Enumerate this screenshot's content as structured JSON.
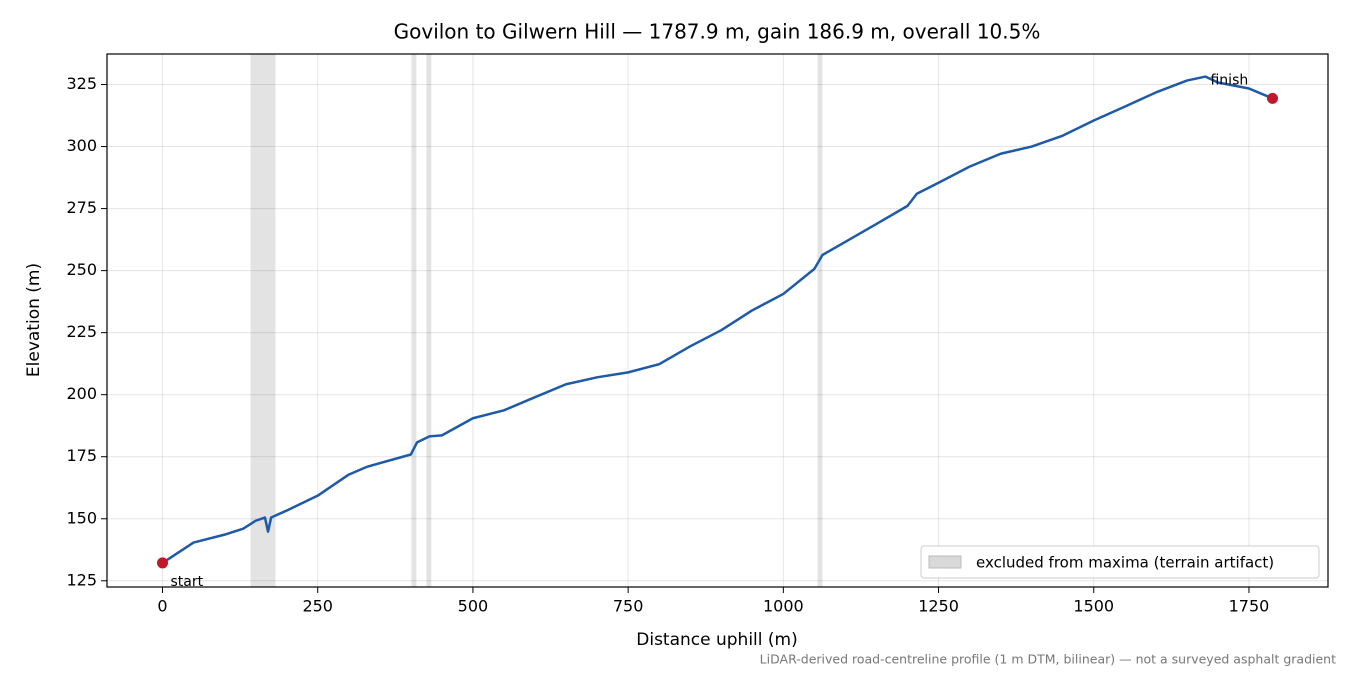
{
  "chart_data": {
    "type": "line",
    "title": "Govilon to Gilwern Hill — 1787.9 m, gain 186.9 m, overall 10.5%",
    "x_label": "Distance uphill (m)",
    "y_label": "Elevation (m)",
    "footnote": "LiDAR-derived road-centreline profile (1 m DTM, bilinear) — not a surveyed asphalt gradient",
    "x": [
      0,
      50,
      100,
      130,
      150,
      165,
      170,
      175,
      200,
      250,
      300,
      330,
      400,
      410,
      430,
      450,
      500,
      550,
      600,
      650,
      700,
      750,
      800,
      850,
      900,
      950,
      1000,
      1050,
      1063,
      1100,
      1150,
      1200,
      1215,
      1250,
      1300,
      1350,
      1400,
      1450,
      1500,
      1550,
      1600,
      1650,
      1680,
      1700,
      1750,
      1787.9
    ],
    "series": [
      {
        "name": "Elevation",
        "color": "#1f5aa8",
        "values": [
          132.2,
          140.4,
          143.6,
          146,
          149.2,
          150.5,
          144.8,
          150.5,
          153.3,
          159.3,
          167.8,
          171,
          175.9,
          180.8,
          183.2,
          183.6,
          190.5,
          193.7,
          199,
          204.2,
          207,
          209,
          212.3,
          219.5,
          226,
          234,
          240.6,
          250.7,
          256.3,
          261.6,
          268.8,
          276.1,
          281,
          285.4,
          291.9,
          297.1,
          300,
          304.4,
          310.5,
          316.1,
          321.8,
          326.6,
          328.2,
          325.8,
          323.4,
          319.4
        ]
      }
    ],
    "excluded_spans": {
      "name": "excluded from maxima (terrain artifact)",
      "color": "#d9d9d9",
      "spans": [
        [
          141.8,
          182
        ],
        [
          401,
          409
        ],
        [
          425,
          433
        ],
        [
          1055,
          1063
        ]
      ]
    },
    "annotations": [
      {
        "text": "start",
        "x": 0,
        "y": 132.2,
        "color": "#c0182a"
      },
      {
        "text": "finish",
        "x": 1787.9,
        "y": 319.4,
        "color": "#c0182a"
      }
    ],
    "xlim": [
      -89.4,
      1877.3
    ],
    "ylim": [
      122.5,
      337.3
    ],
    "xticks": [
      0,
      250,
      500,
      750,
      1000,
      1250,
      1500,
      1750
    ],
    "yticks": [
      125,
      150,
      175,
      200,
      225,
      250,
      275,
      300,
      325
    ],
    "grid": true,
    "legend": "lower right"
  }
}
